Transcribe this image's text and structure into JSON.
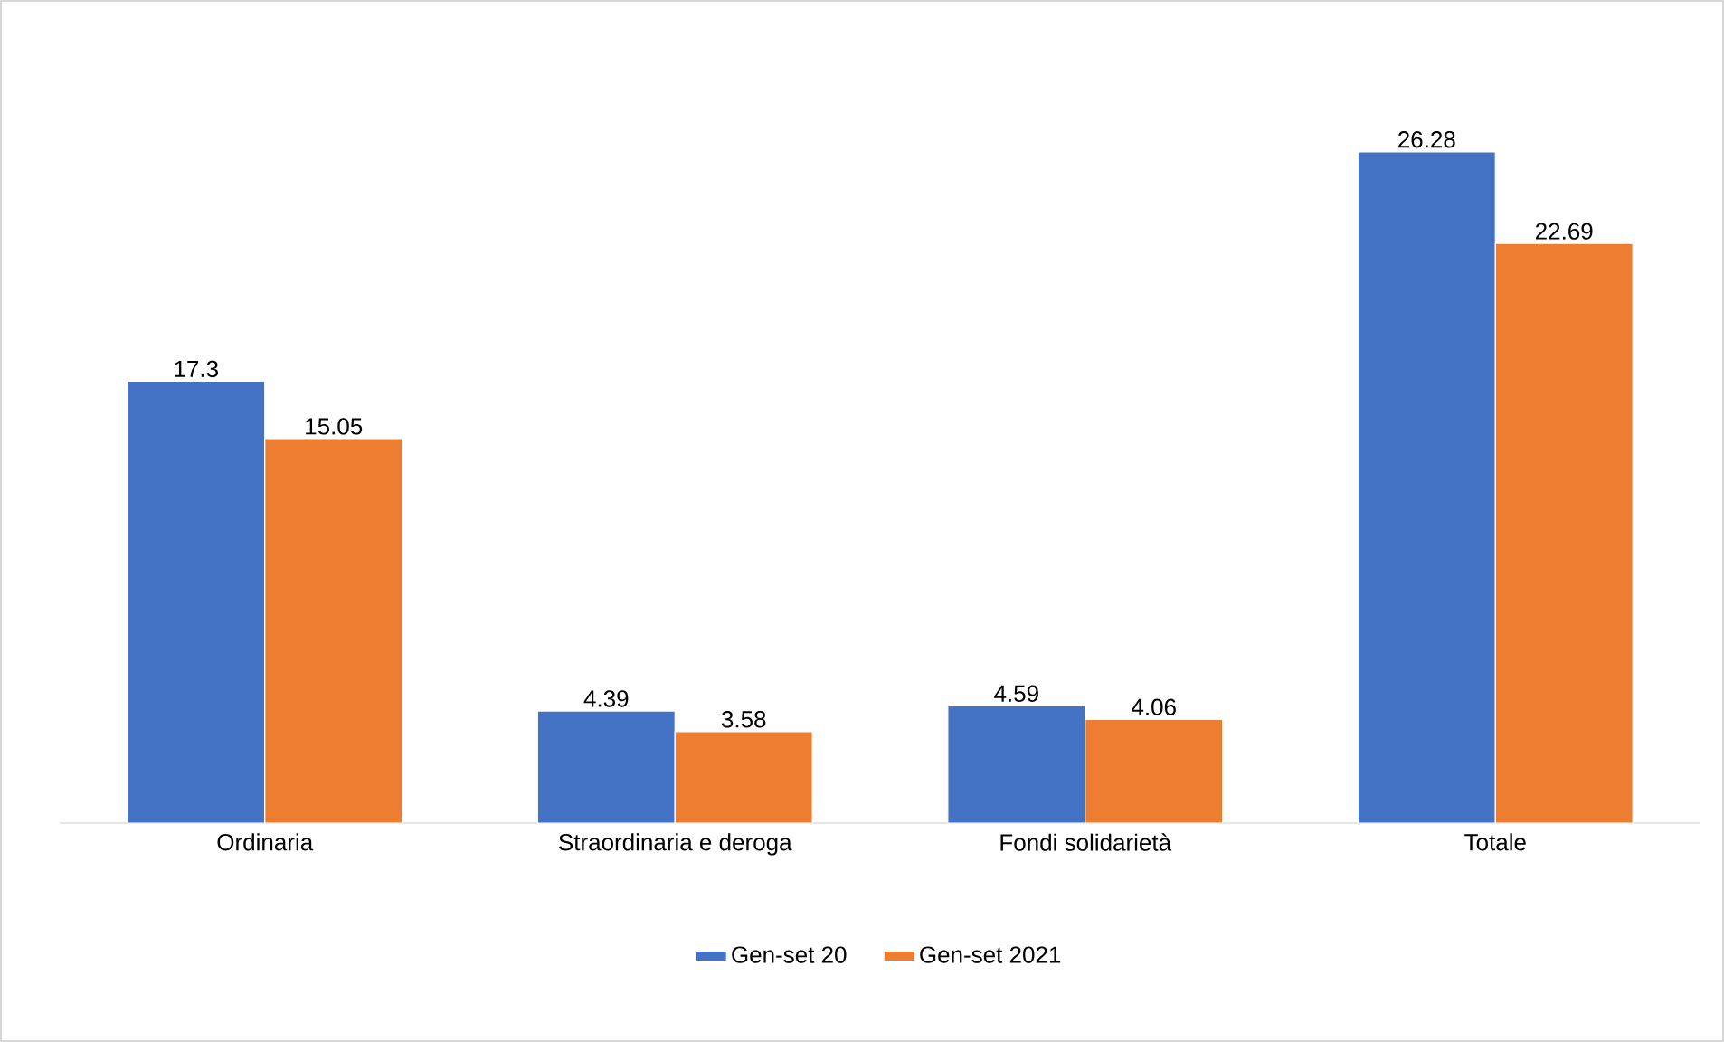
{
  "chart_data": {
    "type": "bar",
    "categories": [
      "Ordinaria",
      "Straordinaria e deroga",
      "Fondi solidarietà",
      "Totale"
    ],
    "series": [
      {
        "name": "Gen-set 20",
        "color": "#4472c4",
        "values": [
          17.3,
          4.39,
          4.59,
          26.28
        ]
      },
      {
        "name": "Gen-set 2021",
        "color": "#ed7d31",
        "values": [
          15.05,
          3.58,
          4.06,
          22.69
        ]
      }
    ],
    "data_labels": true,
    "legend": "bottom"
  }
}
